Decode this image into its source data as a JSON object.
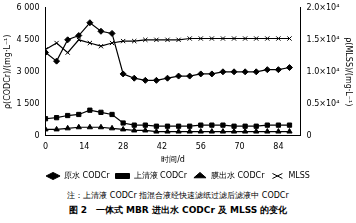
{
  "chart_data": {
    "type": "line",
    "title": "图 2　一体式 MBR 进出水 CODCr 及 MLSS 的变化",
    "annotations": [
      "注：上清液 CODCr 指混合液经快速滤纸过滤后滤液中 CODCr"
    ],
    "x_label": "时间/d",
    "y_label": "ρ(CODCr)/(mg·L⁻¹)",
    "y2_label": "ρ(MLSS)/(mg·L⁻¹)",
    "x": [
      0,
      4,
      8,
      12,
      16,
      20,
      24,
      28,
      32,
      36,
      40,
      44,
      48,
      52,
      56,
      60,
      64,
      68,
      72,
      76,
      80,
      84,
      88
    ],
    "series": [
      {
        "name": "原水 CODCr",
        "color": "#000000",
        "marker": "diamond",
        "line_style": "solid",
        "values": [
          3900,
          3500,
          4500,
          4700,
          5300,
          4900,
          4800,
          2900,
          2700,
          2600,
          2600,
          2700,
          2800,
          2800,
          2900,
          2900,
          3000,
          3000,
          3000,
          3000,
          3100,
          3100,
          3200
        ]
      },
      {
        "name": "上清液 CODCr",
        "color": "#000000",
        "marker": "square",
        "line_style": "solid",
        "values": [
          800,
          850,
          950,
          1000,
          1200,
          1100,
          1000,
          600,
          500,
          500,
          450,
          450,
          450,
          450,
          500,
          500,
          500,
          450,
          450,
          450,
          500,
          500,
          500
        ]
      },
      {
        "name": "膜出水 CODCr",
        "color": "#000000",
        "marker": "triangle",
        "line_style": "solid",
        "values": [
          300,
          300,
          350,
          400,
          400,
          400,
          350,
          300,
          250,
          250,
          200,
          200,
          200,
          200,
          200,
          200,
          200,
          200,
          200,
          200,
          200,
          200,
          200
        ]
      },
      {
        "name": "MLSS",
        "color": "#000000",
        "marker": "x",
        "line_style": "solid",
        "axis": "y2",
        "values": [
          13500,
          14500,
          13000,
          15000,
          14500,
          14000,
          14500,
          14800,
          14800,
          15000,
          15000,
          15000,
          15000,
          15200,
          15200,
          15200,
          15200,
          15200,
          15200,
          15200,
          15200,
          15200,
          15200
        ]
      }
    ],
    "xlim": [
      0,
      92
    ],
    "xticks": [
      0,
      14,
      28,
      42,
      56,
      70,
      84
    ],
    "ylim": [
      0,
      6000
    ],
    "yticks": [
      0,
      {
        "value": 1500,
        "label": "1 500"
      },
      {
        "value": 3000,
        "label": "3 000"
      },
      {
        "value": 4500,
        "label": "4 500"
      },
      {
        "value": 6000,
        "label": "6 000"
      }
    ],
    "y2lim": [
      0,
      20000
    ],
    "y2ticks": [
      0,
      {
        "value": 5000,
        "label": "0.5×10⁴"
      },
      {
        "value": 10000,
        "label": "1.0×10⁴"
      },
      {
        "value": 15000,
        "label": "1.5×10⁴"
      },
      {
        "value": 20000,
        "label": "2.0×10⁴"
      }
    ],
    "grid": false,
    "legend": "bottom"
  }
}
